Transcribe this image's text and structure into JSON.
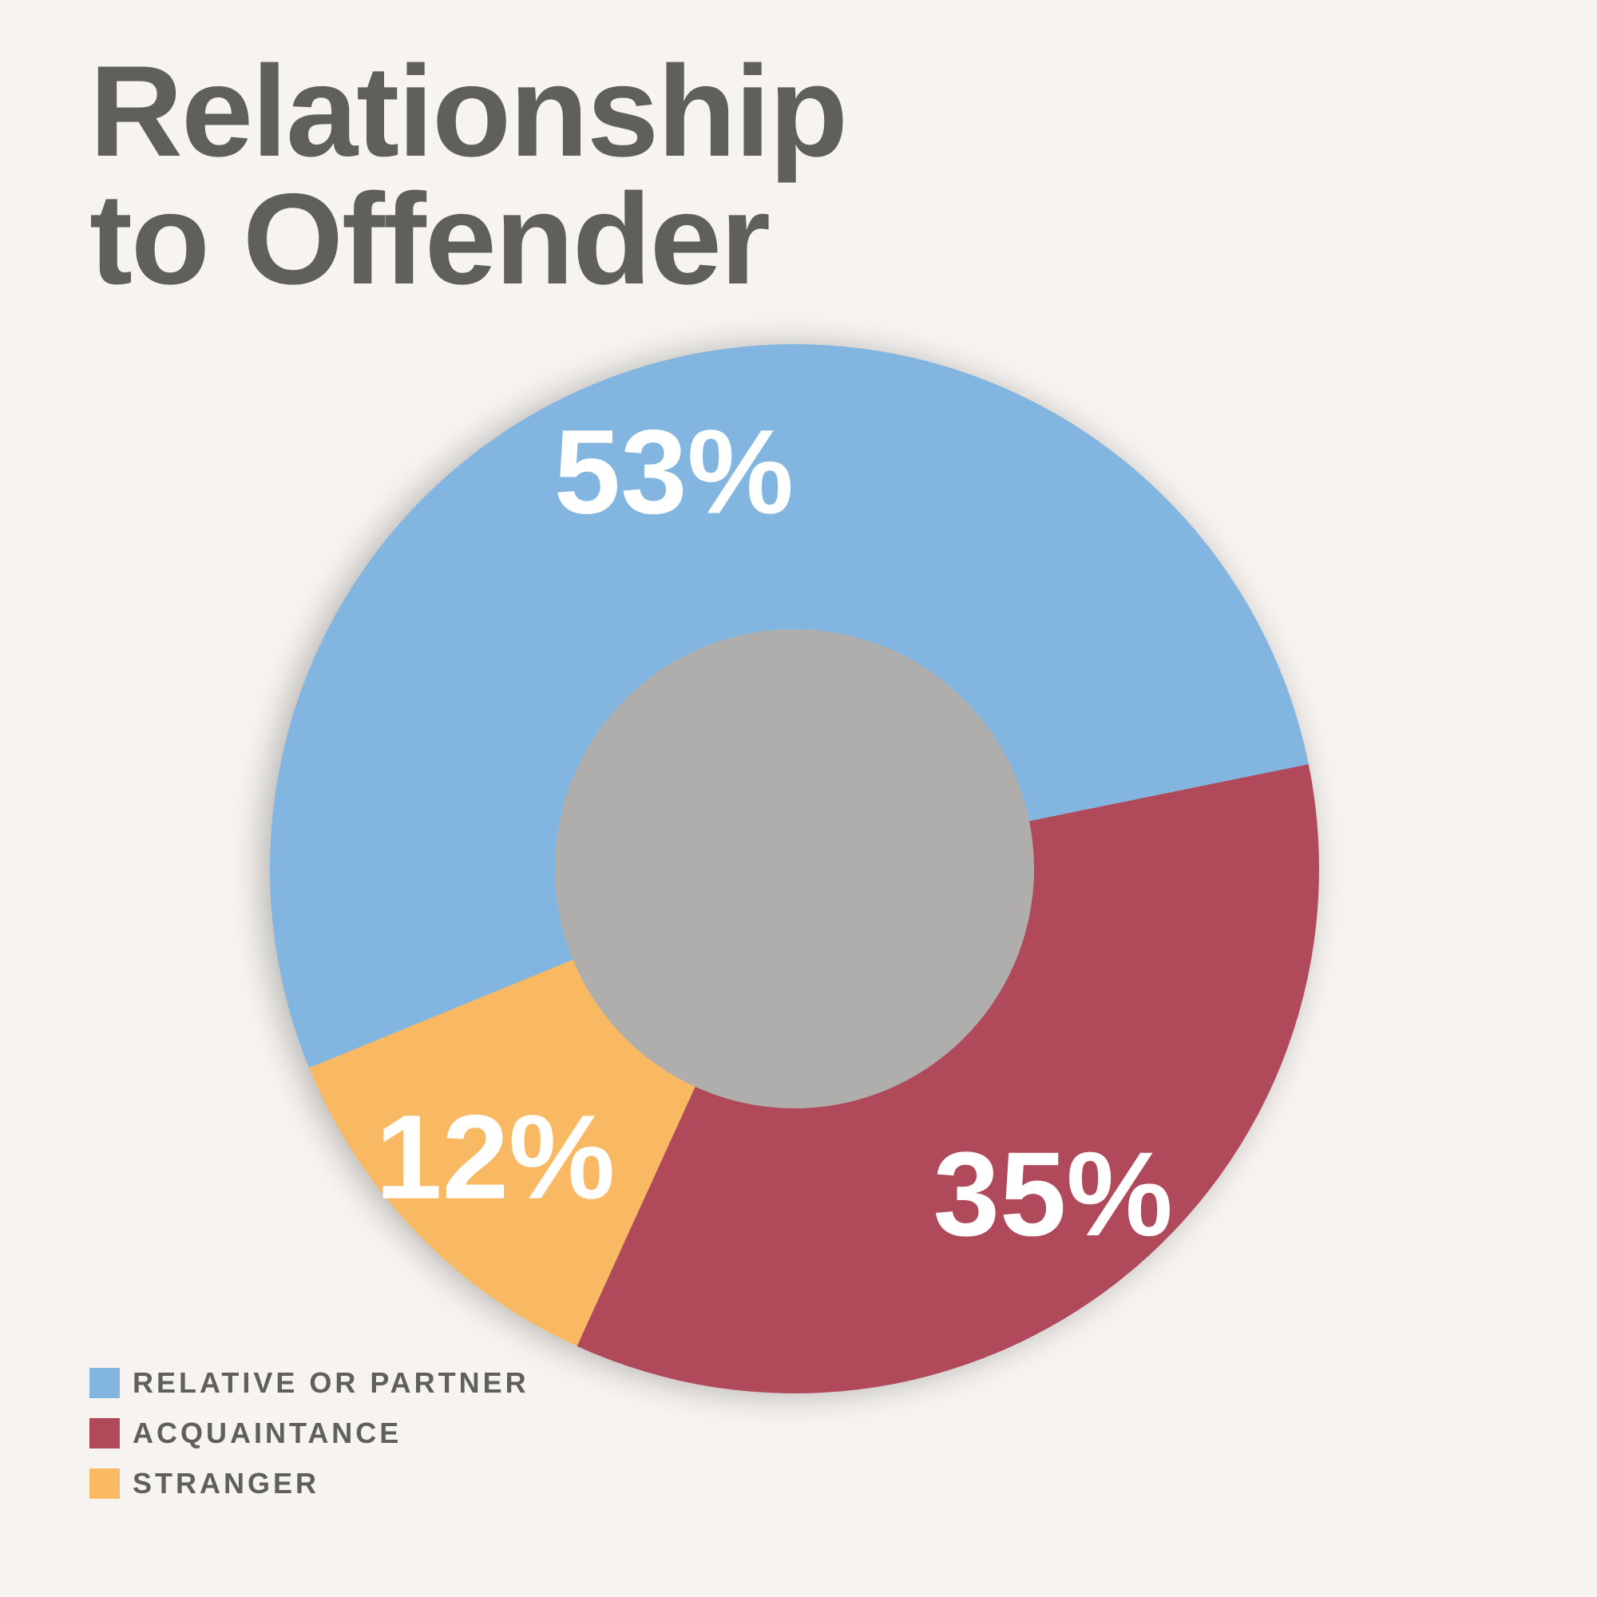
{
  "title_lines": [
    "Relationship",
    "to Offender"
  ],
  "colors": {
    "background": "#f6f3f0",
    "text": "#5f605a",
    "relative": "#82b6e0",
    "acquaintance": "#b04a5a",
    "stranger": "#f9b962"
  },
  "chart_data": {
    "type": "pie",
    "style": "donut",
    "title": "Relationship to Offender",
    "start_angle_deg": -11.5,
    "direction": "clockwise",
    "legend_position": "bottom-left",
    "slices": [
      {
        "name": "ACQUAINTANCE",
        "value": 35,
        "label": "35%",
        "color": "#b04a5a"
      },
      {
        "name": "STRANGER",
        "value": 12,
        "label": "12%",
        "color": "#f9b962"
      },
      {
        "name": "RELATIVE OR PARTNER",
        "value": 53,
        "label": "53%",
        "color": "#82b6e0"
      }
    ]
  },
  "legend": [
    {
      "label": "RELATIVE OR PARTNER",
      "color": "#82b6e0"
    },
    {
      "label": "ACQUAINTANCE",
      "color": "#b04a5a"
    },
    {
      "label": "STRANGER",
      "color": "#f9b962"
    }
  ]
}
